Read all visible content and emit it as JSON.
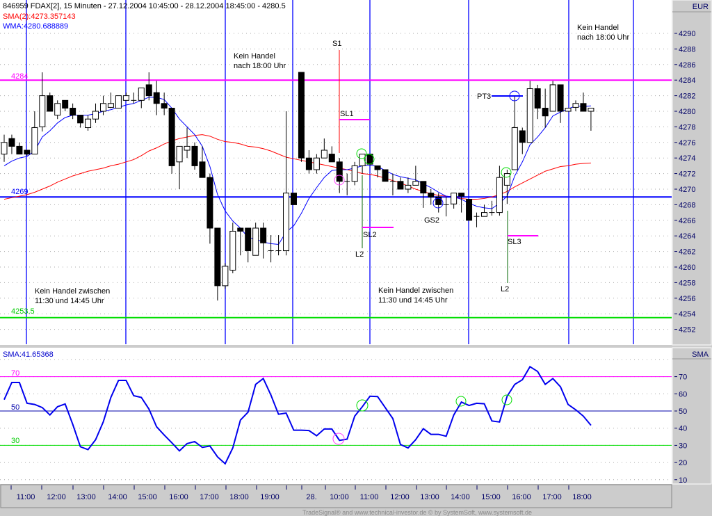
{
  "header": {
    "title": "846959  FDAX[2], 15 Minuten - 27.12.2004 10:45:00 - 28.12.2004 18:45:00 - 4280.5",
    "sma_label": "SMA(2):4273.357143",
    "wma_label": "WMA:4280.688889"
  },
  "osc_header": "SMA:41.65368",
  "footer": "TradeSignal® and www.technical-investor.de © by SystemSoft, www.systemsoft.de",
  "colors": {
    "up": "#ffffff",
    "down": "#000000",
    "wma": "#0000ff",
    "sma": "#ff0000",
    "resistance": "#ff00ff",
    "support": "#0000ff",
    "stop": "#00dd00",
    "osc": "#0000ee"
  },
  "chart_data": [
    {
      "type": "candlestick",
      "title": "FDAX[2], 15 Minuten",
      "ylabel": "EUR",
      "ylim": [
        4250,
        4292
      ],
      "y_ticks": [
        "4290",
        "4288",
        "4286",
        "4284",
        "4282",
        "4280",
        "4278",
        "4276",
        "4274",
        "4272",
        "4270",
        "4268",
        "4266",
        "4264",
        "4262",
        "4260",
        "4258",
        "4256",
        "4254",
        "4252"
      ],
      "x_tick_labels": [
        "11:00",
        "12:00",
        "13:00",
        "14:00",
        "15:00",
        "16:00",
        "17:00",
        "18:00",
        "19:00",
        "28.",
        "10:00",
        "11:00",
        "12:00",
        "13:00",
        "14:00",
        "15:00",
        "16:00",
        "17:00",
        "18:00"
      ],
      "grid": true,
      "ohlc": [
        [
          4274.5,
          4277,
          4273.5,
          4276
        ],
        [
          4276.5,
          4277,
          4274.5,
          4275.5
        ],
        [
          4275.5,
          4276,
          4274.5,
          4274.5
        ],
        [
          4275,
          4275,
          4274.3,
          4274.5
        ],
        [
          4274.5,
          4280,
          4274.5,
          4277.9
        ],
        [
          4278,
          4285,
          4277.4,
          4282
        ],
        [
          4282,
          4282.4,
          4280,
          4280
        ],
        [
          4279.5,
          4281.4,
          4279,
          4281
        ],
        [
          4281.4,
          4281.4,
          4280,
          4280.4
        ],
        [
          4280.4,
          4281,
          4279,
          4279.5
        ],
        [
          4279.5,
          4279.5,
          4277.9,
          4278.5
        ],
        [
          4277.9,
          4279.5,
          4277.5,
          4279
        ],
        [
          4279,
          4281,
          4278.5,
          4280
        ],
        [
          4280,
          4282,
          4279.5,
          4281
        ],
        [
          4280.5,
          4282.4,
          4280.4,
          4281
        ],
        [
          4280.4,
          4282,
          4280.4,
          4282
        ],
        [
          4281.4,
          4282.4,
          4281.4,
          4282
        ],
        [
          4281.4,
          4282.4,
          4281,
          4281.4
        ],
        [
          4281.4,
          4283,
          4280.4,
          4283
        ],
        [
          4283.4,
          4285,
          4281.4,
          4282
        ],
        [
          4282.4,
          4283.9,
          4279.5,
          4281
        ],
        [
          4281,
          4282.4,
          4279.5,
          4280.4
        ],
        [
          4280.4,
          4280.4,
          4272,
          4273
        ],
        [
          4273.5,
          4275.5,
          4270,
          4275.5
        ],
        [
          4275,
          4277.9,
          4274,
          4275.5
        ],
        [
          4275.5,
          4276,
          4272.5,
          4273
        ],
        [
          4273.5,
          4275.5,
          4271.5,
          4271.5
        ],
        [
          4271.5,
          4272,
          4263,
          4265
        ],
        [
          4265,
          4265,
          4255.7,
          4257.6
        ],
        [
          4257.6,
          4260.5,
          4257.2,
          4260.1
        ],
        [
          4259.6,
          4265.7,
          4259.2,
          4264.6
        ],
        [
          4265,
          4265,
          4261.5,
          4264.6
        ],
        [
          4265,
          4265,
          4260.6,
          4262.1
        ],
        [
          4261.5,
          4265.7,
          4261.5,
          4265
        ],
        [
          4265,
          4265.7,
          4261.1,
          4263.1
        ],
        [
          4262.1,
          4264.1,
          4260.6,
          4262.1
        ],
        [
          4262.1,
          4264.1,
          4261.5,
          4262.1
        ],
        [
          4262.1,
          4280,
          4261.5,
          4269.5
        ],
        [
          4269.5,
          4269.5,
          4268,
          4268
        ],
        [
          4285,
          4285,
          4273.5,
          4274
        ],
        [
          4274,
          4275,
          4272,
          4272.5
        ],
        [
          4272.5,
          4274.5,
          4272,
          4274
        ],
        [
          4274,
          4276.5,
          4274,
          4275
        ],
        [
          4274.5,
          4275.5,
          4273.5,
          4273.5
        ],
        [
          4273.5,
          4274,
          4269.5,
          4271
        ],
        [
          4271,
          4272,
          4269.2,
          4271
        ],
        [
          4271,
          4273.5,
          4270.5,
          4273
        ],
        [
          4273,
          4274.5,
          4272,
          4274.5
        ],
        [
          4274.5,
          4274.5,
          4273,
          4273.2
        ],
        [
          4273,
          4273,
          4271.5,
          4272.5
        ],
        [
          4272.5,
          4272.5,
          4271,
          4271
        ],
        [
          4271,
          4272,
          4269.2,
          4271
        ],
        [
          4271,
          4271.5,
          4270,
          4270
        ],
        [
          4270,
          4271.5,
          4269.5,
          4270.5
        ],
        [
          4270.5,
          4273,
          4270.5,
          4271
        ],
        [
          4271,
          4271,
          4267.6,
          4269.5
        ],
        [
          4269.5,
          4270,
          4268,
          4269
        ],
        [
          4269,
          4269.5,
          4267,
          4268
        ],
        [
          4268,
          4269,
          4266.5,
          4268
        ],
        [
          4268.1,
          4269.5,
          4267.5,
          4269.5
        ],
        [
          4269.5,
          4269.5,
          4267,
          4269.1
        ],
        [
          4268.7,
          4268.7,
          4266,
          4266
        ],
        [
          4266.5,
          4267,
          4265.1,
          4266.5
        ],
        [
          4266.5,
          4268,
          4266.5,
          4267
        ],
        [
          4267,
          4268.5,
          4266.6,
          4267
        ],
        [
          4267,
          4273,
          4266.6,
          4271.5
        ],
        [
          4270.5,
          4272.5,
          4268.1,
          4272
        ],
        [
          4272.5,
          4281.9,
          4272.5,
          4277.9
        ],
        [
          4277.5,
          4277.9,
          4274.5,
          4276
        ],
        [
          4276,
          4283.9,
          4276,
          4282.9
        ],
        [
          4282.9,
          4283.4,
          4279,
          4280.4
        ],
        [
          4280.4,
          4282.9,
          4277.9,
          4279.4
        ],
        [
          4280,
          4283.9,
          4280,
          4283.4
        ],
        [
          4283.4,
          4283.4,
          4278.5,
          4280
        ],
        [
          4280,
          4280.4,
          4280,
          4280.4
        ],
        [
          4280.5,
          4281.4,
          4280,
          4281
        ],
        [
          4281,
          4282.4,
          4280,
          4280
        ],
        [
          4280,
          4280.4,
          4277.5,
          4280.4
        ]
      ],
      "series": [
        {
          "name": "WMA",
          "values": [
            4273,
            4273.6,
            4274,
            4274.2,
            4274.9,
            4276.7,
            4277.5,
            4278.5,
            4279.2,
            4279.5,
            4279.5,
            4279.5,
            4279.7,
            4280,
            4280.2,
            4280.5,
            4280.8,
            4281,
            4281.4,
            4281.8,
            4281.8,
            4281.5,
            4280.4,
            4279,
            4278,
            4277,
            4275.5,
            4272.9,
            4269.3,
            4267.2,
            4265.9,
            4265,
            4263.8,
            4263.6,
            4263.2,
            4263,
            4262.9,
            4264.5,
            4265.3,
            4266.9,
            4268.8,
            4270.2,
            4271.5,
            4272.4,
            4272.5,
            4272.5,
            4272.7,
            4273,
            4273.1,
            4272.9,
            4272.4,
            4271.9,
            4271.6,
            4271.4,
            4271.2,
            4270.7,
            4270.2,
            4269.6,
            4269.1,
            4269,
            4268.7,
            4268.2,
            4267.8,
            4267.6,
            4267.5,
            4268.2,
            4269.1,
            4271.7,
            4273.5,
            4275.7,
            4276.7,
            4277.9,
            4279.4,
            4279.9,
            4280.3,
            4280.7,
            4280.6,
            4280.69
          ]
        },
        {
          "name": "SMA(2)",
          "values": [
            4268.7,
            4268.9,
            4269.1,
            4269.3,
            4269.6,
            4270,
            4270.4,
            4270.9,
            4271.3,
            4271.7,
            4272,
            4272.3,
            4272.5,
            4272.7,
            4273,
            4273.2,
            4273.5,
            4273.8,
            4274.3,
            4274.9,
            4275.3,
            4275.8,
            4276.2,
            4276.5,
            4276.7,
            4276.9,
            4277,
            4276.8,
            4276.4,
            4276.1,
            4276,
            4275.8,
            4275.5,
            4275.4,
            4275.2,
            4274.9,
            4274.5,
            4274.1,
            4273.9,
            4273.7,
            4273.5,
            4273.3,
            4273.1,
            4272.9,
            4272.7,
            4272.5,
            4272.3,
            4272,
            4271.9,
            4271.7,
            4271.4,
            4271.1,
            4270.8,
            4270.4,
            4270,
            4269.7,
            4269.4,
            4269.2,
            4269.1,
            4269,
            4268.8,
            4268.7,
            4268.7,
            4268.8,
            4269,
            4269.3,
            4269.7,
            4270.3,
            4270.8,
            4271.3,
            4271.8,
            4272.3,
            4272.6,
            4272.9,
            4273,
            4273.2,
            4273.3,
            4273.36
          ]
        }
      ],
      "levels": [
        {
          "label": "4284",
          "value": 4284,
          "color": "#ff00ff"
        },
        {
          "label": "4269",
          "value": 4269,
          "color": "#0000ff"
        },
        {
          "label": "4253.5",
          "value": 4253.5,
          "color": "#00dd00"
        }
      ],
      "annotations": {
        "no_trade_midday": [
          "Kein Handel zwischen",
          "11:30 und 14:45 Uhr"
        ],
        "no_trade_evening": [
          "Kein Handel",
          "nach 18:00 Uhr"
        ],
        "s1": "S1",
        "sl1": "SL1",
        "sl2": "SL2",
        "l2": "L2",
        "gs2": "GS2",
        "pt3": "PT3",
        "sl3": "SL3"
      }
    },
    {
      "type": "line",
      "ylabel": "SMA",
      "ylim": [
        5,
        82
      ],
      "y_ticks": [
        "70",
        "60",
        "50",
        "40",
        "30",
        "20",
        "10"
      ],
      "levels": [
        {
          "label": "70",
          "value": 70,
          "color": "#ff00ff"
        },
        {
          "label": "50",
          "value": 50,
          "color": "#0000aa"
        },
        {
          "label": "30",
          "value": 30,
          "color": "#00dd00"
        }
      ],
      "series": [
        {
          "name": "SMA",
          "values": [
            56.6,
            66.6,
            66.6,
            54.5,
            53.8,
            52,
            47.7,
            52.5,
            54.1,
            42.2,
            29.2,
            27.5,
            33.3,
            43.6,
            57.9,
            67.8,
            67.8,
            58.9,
            57.9,
            51.1,
            40.8,
            36,
            31.5,
            26.8,
            31,
            32.2,
            28.8,
            29.6,
            23.3,
            19.3,
            28.5,
            44.7,
            49.3,
            65.5,
            68.9,
            59.3,
            48.1,
            48.8,
            38.8,
            38.8,
            38.6,
            35.6,
            39.5,
            39.5,
            32.9,
            33.6,
            47,
            52.5,
            58.6,
            58.4,
            52,
            45.6,
            30.5,
            28.5,
            33.3,
            39.7,
            36.4,
            36.4,
            35.3,
            47.7,
            55.2,
            53.2,
            54.5,
            54.2,
            44.2,
            43.6,
            58.6,
            65.5,
            68.2,
            75.8,
            73,
            65.5,
            68.9,
            64.1,
            53.8,
            50.7,
            47,
            41.65
          ]
        }
      ]
    }
  ]
}
